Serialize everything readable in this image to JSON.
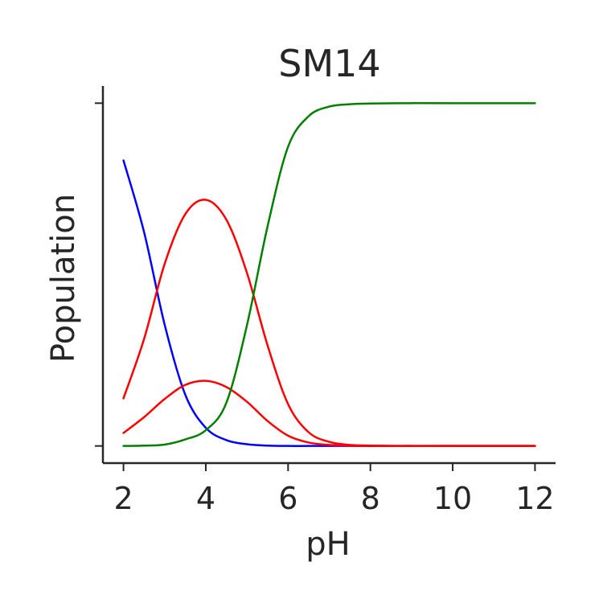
{
  "chart_data": {
    "type": "line",
    "title": "SM14",
    "xlabel": "pH",
    "ylabel": "Population",
    "xlim": [
      1.5,
      12.5
    ],
    "ylim": [
      -0.05,
      1.05
    ],
    "xticks": [
      2,
      4,
      6,
      8,
      10,
      12
    ],
    "xtick_labels": [
      "2",
      "4",
      "6",
      "8",
      "10",
      "12"
    ],
    "yticks": [
      0,
      1
    ],
    "ytick_labels": [
      "",
      ""
    ],
    "grid": false,
    "legend": "none",
    "x": [
      2.0,
      2.5,
      3.0,
      3.5,
      4.0,
      4.5,
      5.0,
      5.5,
      6.0,
      6.5,
      7.0,
      7.5,
      8.0,
      9.0,
      10.0,
      11.0,
      12.0
    ],
    "series": [
      {
        "color": "#0000ff",
        "values": [
          0.833,
          0.624,
          0.354,
          0.15,
          0.053,
          0.017,
          0.005,
          0.001,
          0.0,
          0.0,
          0.0,
          0.0,
          0.0,
          0.0,
          0.0,
          0.0,
          0.0
        ]
      },
      {
        "color": "#ff0000",
        "values": [
          0.139,
          0.312,
          0.531,
          0.676,
          0.718,
          0.66,
          0.505,
          0.294,
          0.122,
          0.04,
          0.012,
          0.003,
          0.001,
          0.0,
          0.0,
          0.0,
          0.0
        ]
      },
      {
        "color": "#ff0000",
        "values": [
          0.038,
          0.084,
          0.137,
          0.178,
          0.19,
          0.172,
          0.129,
          0.073,
          0.03,
          0.01,
          0.003,
          0.001,
          0.0,
          0.0,
          0.0,
          0.0,
          0.0
        ]
      },
      {
        "color": "#008000",
        "values": [
          0.0,
          0.001,
          0.004,
          0.019,
          0.046,
          0.126,
          0.352,
          0.64,
          0.873,
          0.962,
          0.99,
          0.997,
          0.999,
          1.0,
          1.0,
          1.0,
          1.0
        ]
      }
    ]
  }
}
